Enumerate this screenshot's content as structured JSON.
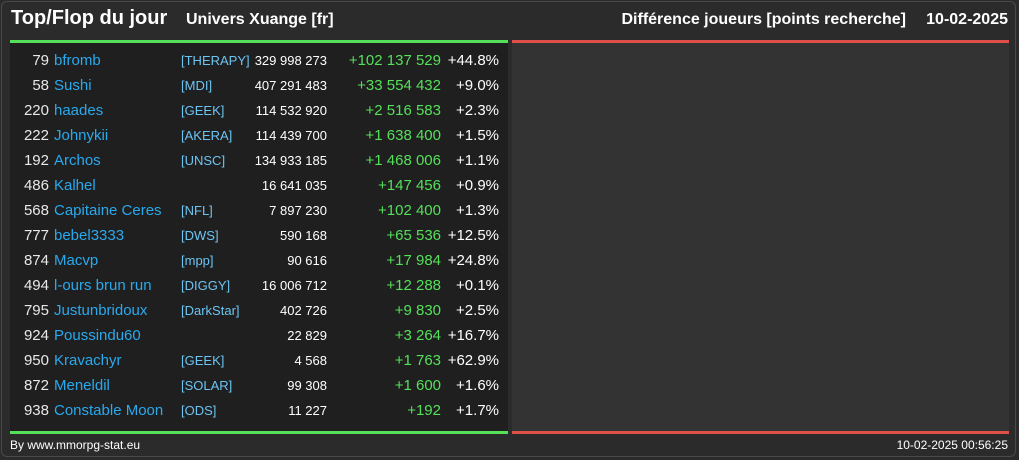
{
  "header": {
    "title": "Top/Flop du jour",
    "universe": "Univers Xuange [fr]",
    "metric": "Différence joueurs [points recherche]",
    "date": "10-02-2025"
  },
  "colors": {
    "positive": "#55e05a",
    "negative": "#e0504a",
    "player": "#2aa9ee",
    "alliance": "#6cc4f2"
  },
  "top": [
    {
      "rank": "79",
      "name": "bfromb",
      "alliance": "[THERAPY]",
      "score": "329 998 273",
      "diff": "+102 137 529",
      "pct": "+44.8%"
    },
    {
      "rank": "58",
      "name": "Sushi",
      "alliance": "[MDI]",
      "score": "407 291 483",
      "diff": "+33 554 432",
      "pct": "+9.0%"
    },
    {
      "rank": "220",
      "name": "haades",
      "alliance": "[GEEK]",
      "score": "114 532 920",
      "diff": "+2 516 583",
      "pct": "+2.3%"
    },
    {
      "rank": "222",
      "name": "Johnykii",
      "alliance": "[AKERA]",
      "score": "114 439 700",
      "diff": "+1 638 400",
      "pct": "+1.5%"
    },
    {
      "rank": "192",
      "name": "Archos",
      "alliance": "[UNSC]",
      "score": "134 933 185",
      "diff": "+1 468 006",
      "pct": "+1.1%"
    },
    {
      "rank": "486",
      "name": "Kalhel",
      "alliance": "",
      "score": "16 641 035",
      "diff": "+147 456",
      "pct": "+0.9%"
    },
    {
      "rank": "568",
      "name": "Capitaine Ceres",
      "alliance": "[NFL]",
      "score": "7 897 230",
      "diff": "+102 400",
      "pct": "+1.3%"
    },
    {
      "rank": "777",
      "name": "bebel3333",
      "alliance": "[DWS]",
      "score": "590 168",
      "diff": "+65 536",
      "pct": "+12.5%"
    },
    {
      "rank": "874",
      "name": "Macvp",
      "alliance": "[mpp]",
      "score": "90 616",
      "diff": "+17 984",
      "pct": "+24.8%"
    },
    {
      "rank": "494",
      "name": "l-ours brun run",
      "alliance": "[DIGGY]",
      "score": "16 006 712",
      "diff": "+12 288",
      "pct": "+0.1%"
    },
    {
      "rank": "795",
      "name": "Justunbridoux",
      "alliance": "[DarkStar]",
      "score": "402 726",
      "diff": "+9 830",
      "pct": "+2.5%"
    },
    {
      "rank": "924",
      "name": "Poussindu60",
      "alliance": "",
      "score": "22 829",
      "diff": "+3 264",
      "pct": "+16.7%"
    },
    {
      "rank": "950",
      "name": "Kravachyr",
      "alliance": "[GEEK]",
      "score": "4 568",
      "diff": "+1 763",
      "pct": "+62.9%"
    },
    {
      "rank": "872",
      "name": "Meneldil",
      "alliance": "[SOLAR]",
      "score": "99 308",
      "diff": "+1 600",
      "pct": "+1.6%"
    },
    {
      "rank": "938",
      "name": "Constable Moon",
      "alliance": "[ODS]",
      "score": "11 227",
      "diff": "+192",
      "pct": "+1.7%"
    }
  ],
  "footer": {
    "credit": "By www.mmorpg-stat.eu",
    "timestamp": "10-02-2025 00:56:25"
  }
}
